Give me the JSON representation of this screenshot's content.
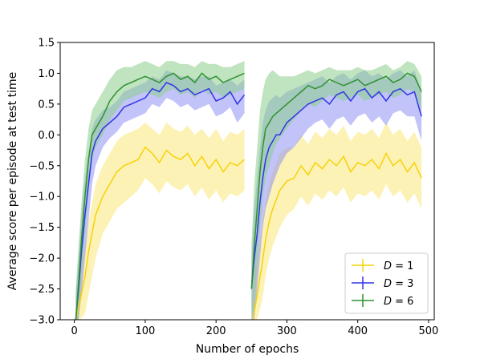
{
  "chart_data": {
    "type": "line",
    "xlabel": "Number of epochs",
    "ylabel": "Average score per episode at test time",
    "xlim": [
      -20,
      508
    ],
    "ylim": [
      -3.0,
      1.5
    ],
    "x_ticks": [
      0,
      100,
      200,
      300,
      400,
      500
    ],
    "x_tick_labels": [
      "0",
      "100",
      "200",
      "300",
      "400",
      "500"
    ],
    "y_ticks": [
      1.5,
      1.0,
      0.5,
      0.0,
      -0.5,
      -1.0,
      -1.5,
      -2.0,
      -2.5,
      -3.0
    ],
    "y_tick_labels": [
      "1.5",
      "1.0",
      "0.5",
      "0.0",
      "−0.5",
      "−1.0",
      "−1.5",
      "−2.0",
      "−2.5",
      "−3.0"
    ],
    "grid": false,
    "legend_position": "bottom-right",
    "series": [
      {
        "name": "D = 1",
        "legend_var": "D",
        "legend_value": "1",
        "color": "#f5d20a",
        "band_color": "#fce878",
        "segments": [
          {
            "x": [
              2,
              8,
              15,
              20,
              25,
              30,
              40,
              50,
              60,
              70,
              80,
              90,
              100,
              110,
              120,
              130,
              140,
              150,
              160,
              170,
              180,
              190,
              200,
              210,
              220,
              230,
              240
            ],
            "mean": [
              -3.0,
              -2.7,
              -2.3,
              -1.9,
              -1.6,
              -1.3,
              -1.0,
              -0.8,
              -0.6,
              -0.5,
              -0.45,
              -0.4,
              -0.2,
              -0.3,
              -0.45,
              -0.25,
              -0.35,
              -0.4,
              -0.3,
              -0.5,
              -0.35,
              -0.55,
              -0.4,
              -0.6,
              -0.45,
              -0.5,
              -0.4
            ],
            "lower": [
              -3.0,
              -3.0,
              -2.9,
              -2.6,
              -2.3,
              -2.0,
              -1.6,
              -1.4,
              -1.2,
              -1.1,
              -1.0,
              -0.9,
              -0.7,
              -0.8,
              -0.95,
              -0.75,
              -0.85,
              -0.9,
              -0.8,
              -1.0,
              -0.85,
              -1.05,
              -0.9,
              -1.1,
              -0.95,
              -1.0,
              -0.9
            ],
            "upper": [
              -2.6,
              -2.2,
              -1.8,
              -1.4,
              -1.1,
              -0.8,
              -0.5,
              -0.3,
              -0.1,
              0.0,
              0.05,
              0.1,
              0.2,
              0.1,
              0.0,
              0.2,
              0.1,
              0.05,
              0.15,
              0.0,
              0.1,
              -0.05,
              0.1,
              -0.1,
              0.05,
              0.0,
              0.1
            ]
          },
          {
            "x": [
              252,
              258,
              265,
              270,
              275,
              280,
              290,
              300,
              310,
              320,
              330,
              340,
              350,
              360,
              370,
              380,
              390,
              400,
              410,
              420,
              430,
              440,
              450,
              460,
              470,
              480,
              490
            ],
            "mean": [
              -3.0,
              -2.6,
              -2.1,
              -1.7,
              -1.4,
              -1.2,
              -0.9,
              -0.75,
              -0.7,
              -0.5,
              -0.65,
              -0.45,
              -0.55,
              -0.4,
              -0.5,
              -0.35,
              -0.6,
              -0.45,
              -0.5,
              -0.4,
              -0.55,
              -0.3,
              -0.5,
              -0.4,
              -0.6,
              -0.45,
              -0.7
            ],
            "lower": [
              -3.0,
              -3.0,
              -2.7,
              -2.3,
              -2.0,
              -1.8,
              -1.5,
              -1.3,
              -1.2,
              -1.0,
              -1.15,
              -0.95,
              -1.05,
              -0.9,
              -1.0,
              -0.85,
              -1.1,
              -0.95,
              -1.0,
              -0.9,
              -1.05,
              -0.8,
              -1.0,
              -0.9,
              -1.1,
              -0.95,
              -1.2
            ],
            "upper": [
              -2.5,
              -2.0,
              -1.5,
              -1.1,
              -0.8,
              -0.6,
              -0.3,
              -0.2,
              -0.2,
              0.0,
              -0.15,
              0.05,
              -0.05,
              0.1,
              0.0,
              0.15,
              -0.1,
              0.05,
              0.0,
              0.1,
              -0.05,
              0.2,
              0.0,
              0.1,
              -0.1,
              0.05,
              -0.2
            ]
          }
        ]
      },
      {
        "name": "D = 3",
        "legend_var": "D",
        "legend_value": "3",
        "color": "#2f35e6",
        "band_color": "#8f91f2",
        "segments": [
          {
            "x": [
              2,
              6,
              10,
              15,
              20,
              25,
              30,
              40,
              50,
              60,
              70,
              80,
              90,
              100,
              110,
              120,
              130,
              140,
              150,
              160,
              170,
              180,
              190,
              200,
              210,
              220,
              230,
              240
            ],
            "mean": [
              -3.0,
              -2.5,
              -1.9,
              -1.3,
              -0.8,
              -0.3,
              -0.1,
              0.1,
              0.2,
              0.3,
              0.45,
              0.5,
              0.55,
              0.6,
              0.75,
              0.7,
              0.85,
              0.8,
              0.7,
              0.75,
              0.65,
              0.7,
              0.75,
              0.55,
              0.6,
              0.7,
              0.5,
              0.65
            ],
            "lower": [
              -3.0,
              -3.0,
              -2.6,
              -2.0,
              -1.4,
              -0.8,
              -0.5,
              -0.2,
              -0.05,
              0.05,
              0.2,
              0.25,
              0.3,
              0.35,
              0.5,
              0.45,
              0.6,
              0.55,
              0.45,
              0.5,
              0.4,
              0.45,
              0.5,
              0.3,
              0.35,
              0.45,
              0.2,
              0.35
            ],
            "upper": [
              -2.6,
              -2.0,
              -1.3,
              -0.7,
              -0.3,
              0.1,
              0.25,
              0.4,
              0.45,
              0.55,
              0.7,
              0.75,
              0.8,
              0.85,
              0.95,
              0.9,
              1.05,
              1.0,
              0.95,
              0.95,
              0.9,
              0.95,
              0.95,
              0.8,
              0.85,
              0.9,
              0.8,
              0.9
            ]
          },
          {
            "x": [
              250,
              254,
              258,
              262,
              266,
              270,
              275,
              280,
              285,
              290,
              300,
              310,
              320,
              330,
              340,
              350,
              360,
              370,
              380,
              390,
              400,
              410,
              420,
              430,
              440,
              450,
              460,
              470,
              480,
              490
            ],
            "mean": [
              -2.5,
              -2.0,
              -1.6,
              -1.1,
              -0.7,
              -0.4,
              -0.2,
              -0.1,
              0.0,
              0.0,
              0.2,
              0.3,
              0.4,
              0.5,
              0.55,
              0.6,
              0.5,
              0.65,
              0.7,
              0.55,
              0.7,
              0.75,
              0.6,
              0.7,
              0.55,
              0.7,
              0.75,
              0.65,
              0.7,
              0.3
            ],
            "lower": [
              -3.0,
              -3.0,
              -2.5,
              -2.0,
              -1.5,
              -1.2,
              -1.0,
              -0.8,
              -0.65,
              -0.5,
              -0.3,
              -0.2,
              -0.05,
              0.1,
              0.2,
              0.25,
              0.1,
              0.25,
              0.3,
              0.15,
              0.3,
              0.35,
              0.2,
              0.3,
              0.15,
              0.35,
              0.4,
              0.3,
              0.3,
              -0.1
            ],
            "upper": [
              -2.0,
              -1.2,
              -0.7,
              -0.2,
              0.2,
              0.4,
              0.55,
              0.6,
              0.65,
              0.6,
              0.7,
              0.75,
              0.8,
              0.85,
              0.9,
              0.95,
              0.85,
              0.95,
              1.0,
              0.9,
              1.0,
              1.05,
              0.95,
              1.0,
              0.9,
              1.0,
              1.05,
              0.95,
              1.05,
              0.7
            ]
          }
        ]
      },
      {
        "name": "D = 6",
        "legend_var": "D",
        "legend_value": "6",
        "color": "#2f922f",
        "band_color": "#8ccd8c",
        "segments": [
          {
            "x": [
              2,
              6,
              10,
              15,
              20,
              25,
              30,
              40,
              50,
              60,
              70,
              80,
              90,
              100,
              110,
              120,
              130,
              140,
              150,
              160,
              170,
              180,
              190,
              200,
              210,
              220,
              230,
              240
            ],
            "mean": [
              -3.0,
              -2.4,
              -1.7,
              -1.0,
              -0.4,
              0.0,
              0.1,
              0.3,
              0.55,
              0.7,
              0.8,
              0.85,
              0.9,
              0.95,
              0.9,
              0.85,
              0.95,
              1.0,
              0.9,
              0.95,
              0.85,
              1.0,
              0.9,
              0.95,
              0.85,
              0.9,
              0.95,
              1.0
            ],
            "lower": [
              -3.0,
              -3.0,
              -2.3,
              -1.6,
              -0.9,
              -0.4,
              -0.2,
              0.0,
              0.25,
              0.4,
              0.55,
              0.6,
              0.65,
              0.7,
              0.65,
              0.6,
              0.7,
              0.75,
              0.65,
              0.7,
              0.6,
              0.75,
              0.65,
              0.7,
              0.6,
              0.65,
              0.7,
              0.75
            ],
            "upper": [
              -2.5,
              -1.8,
              -1.1,
              -0.4,
              0.1,
              0.4,
              0.5,
              0.7,
              0.9,
              1.05,
              1.1,
              1.1,
              1.15,
              1.2,
              1.15,
              1.1,
              1.2,
              1.2,
              1.15,
              1.15,
              1.1,
              1.2,
              1.15,
              1.15,
              1.1,
              1.1,
              1.15,
              1.2
            ]
          },
          {
            "x": [
              250,
              254,
              258,
              262,
              266,
              270,
              275,
              280,
              285,
              290,
              300,
              310,
              320,
              330,
              340,
              350,
              360,
              370,
              380,
              390,
              400,
              410,
              420,
              430,
              440,
              450,
              460,
              470,
              480,
              490
            ],
            "mean": [
              -2.5,
              -1.8,
              -1.2,
              -0.6,
              -0.2,
              0.1,
              0.2,
              0.3,
              0.35,
              0.4,
              0.5,
              0.6,
              0.7,
              0.8,
              0.75,
              0.8,
              0.9,
              0.85,
              0.8,
              0.85,
              0.9,
              0.8,
              0.85,
              0.9,
              0.95,
              0.85,
              0.9,
              1.0,
              0.95,
              0.7
            ],
            "lower": [
              -3.0,
              -2.8,
              -2.1,
              -1.5,
              -1.0,
              -0.7,
              -0.5,
              -0.3,
              -0.15,
              -0.05,
              0.1,
              0.25,
              0.4,
              0.5,
              0.45,
              0.55,
              0.65,
              0.6,
              0.55,
              0.6,
              0.65,
              0.55,
              0.6,
              0.65,
              0.7,
              0.6,
              0.65,
              0.75,
              0.7,
              0.4
            ],
            "upper": [
              -1.8,
              -0.8,
              -0.2,
              0.4,
              0.7,
              0.9,
              1.0,
              1.05,
              1.0,
              0.95,
              0.95,
              0.95,
              1.0,
              1.05,
              1.0,
              1.05,
              1.1,
              1.05,
              1.05,
              1.05,
              1.1,
              1.05,
              1.05,
              1.1,
              1.15,
              1.05,
              1.1,
              1.2,
              1.15,
              0.95
            ]
          }
        ]
      }
    ]
  }
}
